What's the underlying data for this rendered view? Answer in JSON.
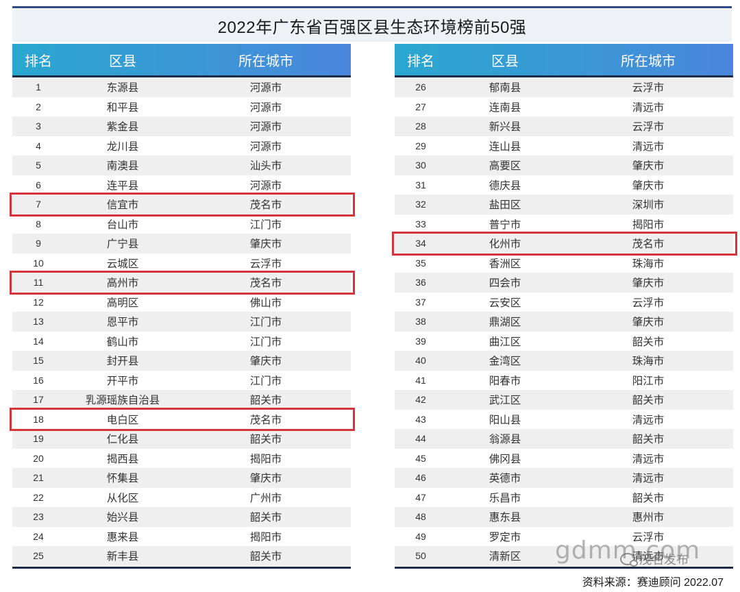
{
  "title": "2022年广东省百强区县生态环境榜前50强",
  "headers": {
    "rank": "排名",
    "county": "区县",
    "city": "所在城市"
  },
  "left_rows": [
    {
      "rank": "1",
      "county": "东源县",
      "city": "河源市"
    },
    {
      "rank": "2",
      "county": "和平县",
      "city": "河源市"
    },
    {
      "rank": "3",
      "county": "紫金县",
      "city": "河源市"
    },
    {
      "rank": "4",
      "county": "龙川县",
      "city": "河源市"
    },
    {
      "rank": "5",
      "county": "南澳县",
      "city": "汕头市"
    },
    {
      "rank": "6",
      "county": "连平县",
      "city": "河源市"
    },
    {
      "rank": "7",
      "county": "信宜市",
      "city": "茂名市"
    },
    {
      "rank": "8",
      "county": "台山市",
      "city": "江门市"
    },
    {
      "rank": "9",
      "county": "广宁县",
      "city": "肇庆市"
    },
    {
      "rank": "10",
      "county": "云城区",
      "city": "云浮市"
    },
    {
      "rank": "11",
      "county": "高州市",
      "city": "茂名市"
    },
    {
      "rank": "12",
      "county": "高明区",
      "city": "佛山市"
    },
    {
      "rank": "13",
      "county": "恩平市",
      "city": "江门市"
    },
    {
      "rank": "14",
      "county": "鹤山市",
      "city": "江门市"
    },
    {
      "rank": "15",
      "county": "封开县",
      "city": "肇庆市"
    },
    {
      "rank": "16",
      "county": "开平市",
      "city": "江门市"
    },
    {
      "rank": "17",
      "county": "乳源瑶族自治县",
      "city": "韶关市"
    },
    {
      "rank": "18",
      "county": "电白区",
      "city": "茂名市"
    },
    {
      "rank": "19",
      "county": "仁化县",
      "city": "韶关市"
    },
    {
      "rank": "20",
      "county": "揭西县",
      "city": "揭阳市"
    },
    {
      "rank": "21",
      "county": "怀集县",
      "city": "肇庆市"
    },
    {
      "rank": "22",
      "county": "从化区",
      "city": "广州市"
    },
    {
      "rank": "23",
      "county": "始兴县",
      "city": "韶关市"
    },
    {
      "rank": "24",
      "county": "惠来县",
      "city": "揭阳市"
    },
    {
      "rank": "25",
      "county": "新丰县",
      "city": "韶关市"
    }
  ],
  "right_rows": [
    {
      "rank": "26",
      "county": "郁南县",
      "city": "云浮市"
    },
    {
      "rank": "27",
      "county": "连南县",
      "city": "清远市"
    },
    {
      "rank": "28",
      "county": "新兴县",
      "city": "云浮市"
    },
    {
      "rank": "29",
      "county": "连山县",
      "city": "清远市"
    },
    {
      "rank": "30",
      "county": "高要区",
      "city": "肇庆市"
    },
    {
      "rank": "31",
      "county": "德庆县",
      "city": "肇庆市"
    },
    {
      "rank": "32",
      "county": "盐田区",
      "city": "深圳市"
    },
    {
      "rank": "33",
      "county": "普宁市",
      "city": "揭阳市"
    },
    {
      "rank": "34",
      "county": "化州市",
      "city": "茂名市"
    },
    {
      "rank": "35",
      "county": "香洲区",
      "city": "珠海市"
    },
    {
      "rank": "36",
      "county": "四会市",
      "city": "肇庆市"
    },
    {
      "rank": "37",
      "county": "云安区",
      "city": "云浮市"
    },
    {
      "rank": "38",
      "county": "鼎湖区",
      "city": "肇庆市"
    },
    {
      "rank": "39",
      "county": "曲江区",
      "city": "韶关市"
    },
    {
      "rank": "40",
      "county": "金湾区",
      "city": "珠海市"
    },
    {
      "rank": "41",
      "county": "阳春市",
      "city": "阳江市"
    },
    {
      "rank": "42",
      "county": "武江区",
      "city": "韶关市"
    },
    {
      "rank": "43",
      "county": "阳山县",
      "city": "清远市"
    },
    {
      "rank": "44",
      "county": "翁源县",
      "city": "韶关市"
    },
    {
      "rank": "45",
      "county": "佛冈县",
      "city": "清远市"
    },
    {
      "rank": "46",
      "county": "英德市",
      "city": "清远市"
    },
    {
      "rank": "47",
      "county": "乐昌市",
      "city": "韶关市"
    },
    {
      "rank": "48",
      "county": "惠东县",
      "city": "惠州市"
    },
    {
      "rank": "49",
      "county": "罗定市",
      "city": "云浮市"
    },
    {
      "rank": "50",
      "county": "清新区",
      "city": "清远市"
    }
  ],
  "highlighted_ranks": [
    "7",
    "11",
    "18",
    "34"
  ],
  "highlight_color": "#d7333b",
  "header_color": "#3c97d6",
  "watermark": "gdmm.com",
  "brand": "茂名发布",
  "brand_icon": "wechat-icon",
  "source": "资料来源：赛迪顾问 2022.07"
}
